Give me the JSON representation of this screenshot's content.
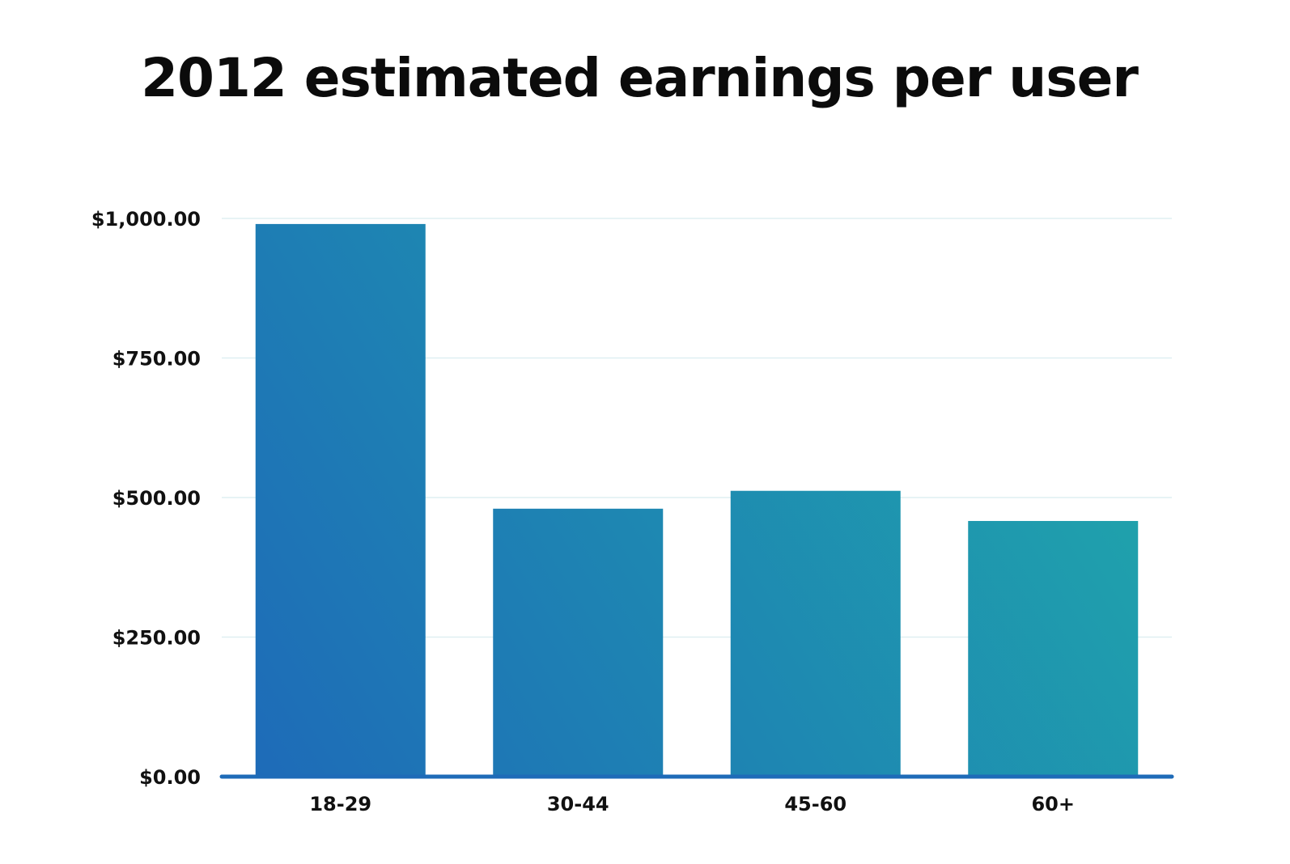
{
  "chart_data": {
    "type": "bar",
    "title": "2012 estimated earnings per user",
    "xlabel": "",
    "ylabel": "",
    "categories": [
      "18-29",
      "30-44",
      "45-60",
      "60+"
    ],
    "values": [
      990,
      480,
      512,
      458
    ],
    "ylim": [
      0,
      1000
    ],
    "yticks": [
      0,
      250,
      500,
      750,
      1000
    ],
    "ytick_labels": [
      "$0.00",
      "$250.00",
      "$500.00",
      "$750.00",
      "$1,000.00"
    ],
    "grid": true,
    "legend": "none",
    "colors": {
      "bar_gradient_start": "#1e6bb8",
      "bar_gradient_end": "#1fabaa",
      "gridline": "#dfeff2",
      "axis": "#1e6bb8"
    }
  }
}
